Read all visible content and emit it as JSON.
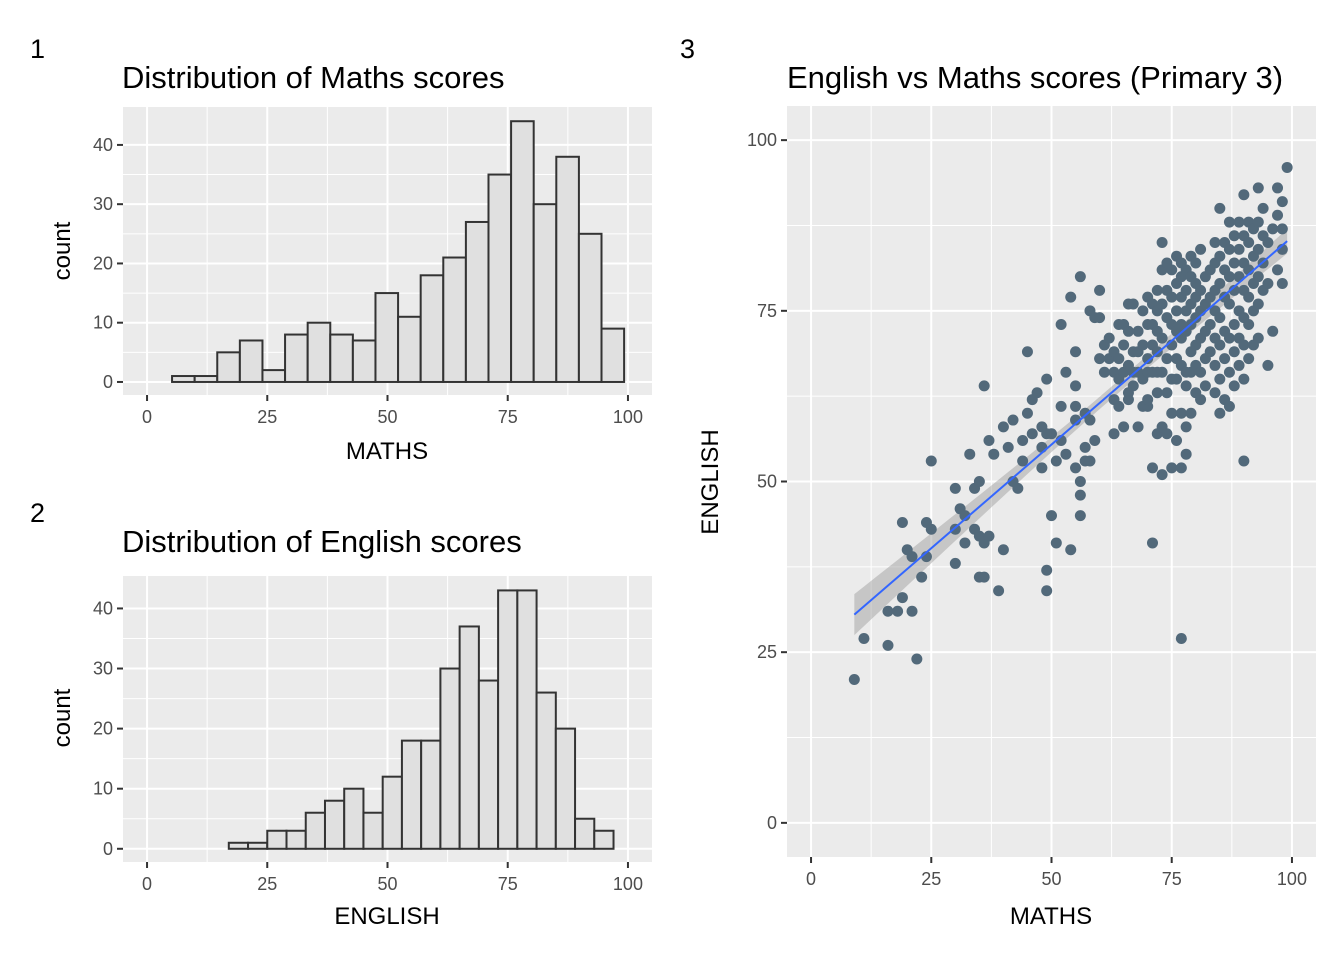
{
  "chart_data": [
    {
      "panel_tag": "1",
      "type": "bar",
      "title": "Distribution of Maths scores",
      "xlabel": "MATHS",
      "ylabel": "count",
      "xlim": [
        -5,
        105
      ],
      "ylim": [
        -2.2,
        46.4
      ],
      "xticks": [
        0,
        25,
        50,
        75,
        100
      ],
      "yticks": [
        0,
        10,
        20,
        30,
        40
      ],
      "grid": true,
      "bin_width": 4.7,
      "bins_start": 5.2,
      "values": [
        1,
        1,
        5,
        7,
        2,
        8,
        10,
        8,
        7,
        15,
        11,
        18,
        21,
        27,
        35,
        44,
        30,
        38,
        25,
        9
      ]
    },
    {
      "panel_tag": "2",
      "type": "bar",
      "title": "Distribution of English scores",
      "xlabel": "ENGLISH",
      "ylabel": "count",
      "xlim": [
        -5,
        105
      ],
      "ylim": [
        -2.2,
        45.4
      ],
      "xticks": [
        0,
        25,
        50,
        75,
        100
      ],
      "yticks": [
        0,
        10,
        20,
        30,
        40
      ],
      "grid": true,
      "bin_width": 4.0,
      "bins_start": 17.0,
      "values": [
        1,
        1,
        3,
        3,
        6,
        8,
        10,
        6,
        12,
        18,
        18,
        30,
        37,
        28,
        43,
        43,
        26,
        20,
        5,
        3
      ]
    },
    {
      "panel_tag": "3",
      "type": "scatter",
      "title": "English vs Maths scores (Primary 3)",
      "xlabel": "MATHS",
      "ylabel": "ENGLISH",
      "xlim": [
        -5,
        105
      ],
      "ylim": [
        -5,
        105
      ],
      "xticks": [
        0,
        25,
        50,
        75,
        100
      ],
      "yticks": [
        0,
        25,
        50,
        75,
        100
      ],
      "grid": true,
      "point_color": "#52697a",
      "fit_line": {
        "color": "#3366ff",
        "band_color": "#999999",
        "x": [
          9,
          99
        ],
        "y": [
          30.5,
          85.2
        ],
        "band_halfwidth_ends": [
          3.0,
          1.8
        ],
        "band_halfwidth_center": 0.9,
        "x_center": 62
      },
      "points": [
        [
          9,
          21
        ],
        [
          11,
          27
        ],
        [
          16,
          26
        ],
        [
          16,
          31
        ],
        [
          18,
          31
        ],
        [
          19,
          33
        ],
        [
          19,
          44
        ],
        [
          20,
          40
        ],
        [
          21,
          31
        ],
        [
          21,
          39
        ],
        [
          22,
          24
        ],
        [
          23,
          36
        ],
        [
          24,
          39
        ],
        [
          24,
          44
        ],
        [
          25,
          43
        ],
        [
          25,
          53
        ],
        [
          30,
          38
        ],
        [
          30,
          43
        ],
        [
          30,
          49
        ],
        [
          31,
          46
        ],
        [
          32,
          41
        ],
        [
          32,
          45
        ],
        [
          33,
          54
        ],
        [
          34,
          43
        ],
        [
          34,
          49
        ],
        [
          35,
          36
        ],
        [
          35,
          42
        ],
        [
          35,
          50
        ],
        [
          36,
          36
        ],
        [
          36,
          41
        ],
        [
          36,
          64
        ],
        [
          37,
          42
        ],
        [
          37,
          56
        ],
        [
          38,
          54
        ],
        [
          39,
          34
        ],
        [
          40,
          40
        ],
        [
          40,
          58
        ],
        [
          41,
          55
        ],
        [
          42,
          50
        ],
        [
          42,
          59
        ],
        [
          43,
          49
        ],
        [
          44,
          53
        ],
        [
          44,
          56
        ],
        [
          45,
          60
        ],
        [
          45,
          69
        ],
        [
          46,
          57
        ],
        [
          46,
          62
        ],
        [
          47,
          63
        ],
        [
          48,
          52
        ],
        [
          48,
          58
        ],
        [
          48,
          55
        ],
        [
          49,
          34
        ],
        [
          49,
          37
        ],
        [
          49,
          57
        ],
        [
          49,
          65
        ],
        [
          50,
          45
        ],
        [
          50,
          57
        ],
        [
          51,
          41
        ],
        [
          51,
          53
        ],
        [
          52,
          56
        ],
        [
          52,
          61
        ],
        [
          52,
          73
        ],
        [
          53,
          54
        ],
        [
          53,
          66
        ],
        [
          54,
          40
        ],
        [
          54,
          77
        ],
        [
          55,
          52
        ],
        [
          55,
          59
        ],
        [
          55,
          61
        ],
        [
          55,
          64
        ],
        [
          55,
          69
        ],
        [
          56,
          45
        ],
        [
          56,
          48
        ],
        [
          56,
          50
        ],
        [
          56,
          80
        ],
        [
          57,
          53
        ],
        [
          57,
          55
        ],
        [
          57,
          60
        ],
        [
          58,
          53
        ],
        [
          58,
          59
        ],
        [
          58,
          75
        ],
        [
          59,
          56
        ],
        [
          59,
          74
        ],
        [
          60,
          68
        ],
        [
          60,
          74
        ],
        [
          60,
          78
        ],
        [
          61,
          66
        ],
        [
          61,
          70
        ],
        [
          62,
          68
        ],
        [
          62,
          71
        ],
        [
          63,
          57
        ],
        [
          63,
          62
        ],
        [
          63,
          66
        ],
        [
          63,
          69
        ],
        [
          64,
          61
        ],
        [
          64,
          65
        ],
        [
          64,
          68
        ],
        [
          64,
          73
        ],
        [
          65,
          58
        ],
        [
          65,
          66
        ],
        [
          65,
          73
        ],
        [
          65,
          70
        ],
        [
          66,
          62
        ],
        [
          66,
          63
        ],
        [
          66,
          67
        ],
        [
          66,
          72
        ],
        [
          66,
          76
        ],
        [
          67,
          64
        ],
        [
          67,
          66
        ],
        [
          67,
          69
        ],
        [
          67,
          76
        ],
        [
          68,
          58
        ],
        [
          68,
          66
        ],
        [
          68,
          69
        ],
        [
          68,
          72
        ],
        [
          69,
          61
        ],
        [
          69,
          65
        ],
        [
          69,
          70
        ],
        [
          69,
          75
        ],
        [
          70,
          61
        ],
        [
          70,
          62
        ],
        [
          70,
          66
        ],
        [
          70,
          68
        ],
        [
          70,
          73
        ],
        [
          70,
          77
        ],
        [
          71,
          41
        ],
        [
          71,
          52
        ],
        [
          71,
          66
        ],
        [
          71,
          70
        ],
        [
          71,
          73
        ],
        [
          71,
          76
        ],
        [
          72,
          57
        ],
        [
          72,
          63
        ],
        [
          72,
          66
        ],
        [
          72,
          69
        ],
        [
          72,
          72
        ],
        [
          72,
          75
        ],
        [
          72,
          78
        ],
        [
          73,
          51
        ],
        [
          73,
          58
        ],
        [
          73,
          66
        ],
        [
          73,
          71
        ],
        [
          73,
          76
        ],
        [
          73,
          81
        ],
        [
          73,
          85
        ],
        [
          74,
          57
        ],
        [
          74,
          63
        ],
        [
          74,
          68
        ],
        [
          74,
          74
        ],
        [
          74,
          78
        ],
        [
          74,
          82
        ],
        [
          75,
          52
        ],
        [
          75,
          60
        ],
        [
          75,
          65
        ],
        [
          75,
          70
        ],
        [
          75,
          73
        ],
        [
          75,
          77
        ],
        [
          75,
          81
        ],
        [
          76,
          56
        ],
        [
          76,
          65
        ],
        [
          76,
          68
        ],
        [
          76,
          72
        ],
        [
          76,
          75
        ],
        [
          76,
          79
        ],
        [
          76,
          83
        ],
        [
          77,
          27
        ],
        [
          77,
          52
        ],
        [
          77,
          60
        ],
        [
          77,
          67
        ],
        [
          77,
          71
        ],
        [
          77,
          73
        ],
        [
          77,
          77
        ],
        [
          77,
          80
        ],
        [
          77,
          82
        ],
        [
          78,
          54
        ],
        [
          78,
          58
        ],
        [
          78,
          64
        ],
        [
          78,
          66
        ],
        [
          78,
          72
        ],
        [
          78,
          75
        ],
        [
          78,
          78
        ],
        [
          78,
          81
        ],
        [
          79,
          60
        ],
        [
          79,
          66
        ],
        [
          79,
          69
        ],
        [
          79,
          73
        ],
        [
          79,
          76
        ],
        [
          79,
          80
        ],
        [
          79,
          83
        ],
        [
          80,
          63
        ],
        [
          80,
          67
        ],
        [
          80,
          70
        ],
        [
          80,
          74
        ],
        [
          80,
          77
        ],
        [
          80,
          79
        ],
        [
          80,
          82
        ],
        [
          81,
          62
        ],
        [
          81,
          66
        ],
        [
          81,
          71
        ],
        [
          81,
          75
        ],
        [
          81,
          78
        ],
        [
          81,
          84
        ],
        [
          82,
          64
        ],
        [
          82,
          68
        ],
        [
          82,
          72
        ],
        [
          82,
          76
        ],
        [
          82,
          80
        ],
        [
          83,
          69
        ],
        [
          83,
          73
        ],
        [
          83,
          77
        ],
        [
          83,
          81
        ],
        [
          84,
          63
        ],
        [
          84,
          67
        ],
        [
          84,
          71
        ],
        [
          84,
          75
        ],
        [
          84,
          78
        ],
        [
          84,
          82
        ],
        [
          84,
          85
        ],
        [
          85,
          60
        ],
        [
          85,
          65
        ],
        [
          85,
          70
        ],
        [
          85,
          74
        ],
        [
          85,
          79
        ],
        [
          85,
          83
        ],
        [
          85,
          90
        ],
        [
          86,
          62
        ],
        [
          86,
          68
        ],
        [
          86,
          72
        ],
        [
          86,
          77
        ],
        [
          86,
          81
        ],
        [
          86,
          85
        ],
        [
          87,
          61
        ],
        [
          87,
          66
        ],
        [
          87,
          71
        ],
        [
          87,
          76
        ],
        [
          87,
          80
        ],
        [
          87,
          84
        ],
        [
          87,
          88
        ],
        [
          88,
          64
        ],
        [
          88,
          69
        ],
        [
          88,
          73
        ],
        [
          88,
          78
        ],
        [
          88,
          82
        ],
        [
          88,
          86
        ],
        [
          89,
          67
        ],
        [
          89,
          71
        ],
        [
          89,
          75
        ],
        [
          89,
          80
        ],
        [
          89,
          84
        ],
        [
          89,
          88
        ],
        [
          90,
          53
        ],
        [
          90,
          65
        ],
        [
          90,
          70
        ],
        [
          90,
          74
        ],
        [
          90,
          78
        ],
        [
          90,
          82
        ],
        [
          90,
          86
        ],
        [
          90,
          92
        ],
        [
          91,
          68
        ],
        [
          91,
          73
        ],
        [
          91,
          77
        ],
        [
          91,
          81
        ],
        [
          91,
          85
        ],
        [
          91,
          88
        ],
        [
          92,
          70
        ],
        [
          92,
          75
        ],
        [
          92,
          79
        ],
        [
          92,
          83
        ],
        [
          92,
          87
        ],
        [
          93,
          71
        ],
        [
          93,
          76
        ],
        [
          93,
          80
        ],
        [
          93,
          84
        ],
        [
          93,
          88
        ],
        [
          93,
          93
        ],
        [
          94,
          78
        ],
        [
          94,
          82
        ],
        [
          94,
          86
        ],
        [
          94,
          90
        ],
        [
          95,
          67
        ],
        [
          95,
          79
        ],
        [
          95,
          85
        ],
        [
          96,
          72
        ],
        [
          96,
          87
        ],
        [
          97,
          81
        ],
        [
          97,
          89
        ],
        [
          97,
          93
        ],
        [
          98,
          79
        ],
        [
          98,
          84
        ],
        [
          98,
          87
        ],
        [
          98,
          91
        ],
        [
          99,
          96
        ]
      ]
    }
  ]
}
